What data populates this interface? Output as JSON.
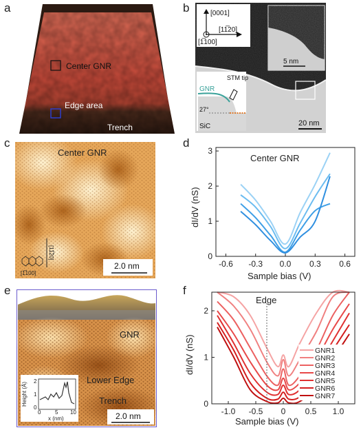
{
  "panel_labels": {
    "a": "a",
    "b": "b",
    "c": "c",
    "d": "d",
    "e": "e",
    "f": "f"
  },
  "panel_a": {
    "center_label": "Center GNR",
    "edge_label": "Edge area",
    "trench_label": "Trench",
    "colors": {
      "surface": "#c85040",
      "trench": "#3a2418",
      "center_box": "#111111",
      "edge_box": "#2c3fd6"
    }
  },
  "panel_b": {
    "axis_up": "[0001]",
    "axis_right": "[11̅20]",
    "axis_out": "[1̅100]",
    "inset_scale": "5 nm",
    "scale": "20 nm",
    "sketch_gnr": "GNR",
    "sketch_tip": "STM tip",
    "sketch_angle": "27°",
    "sketch_sic": "SiC"
  },
  "panel_c": {
    "title": "Center GNR",
    "axis_right": "[1̅100]",
    "axis_up": "[11̅20]",
    "scale": "2.0 nm"
  },
  "panel_d": {
    "annotation": "Center GNR",
    "ylabel": "dI/dV (nS)",
    "xlabel": "Sample bias (V)",
    "xticks": [
      "-0.6",
      "-0.3",
      "0.0",
      "0.3",
      "0.6"
    ],
    "yticks": [
      "0",
      "1",
      "2",
      "3"
    ]
  },
  "panel_e": {
    "gnr": "GNR",
    "lower_edge": "Lower Edge",
    "trench": "Trench",
    "scale": "2.0 nm",
    "inset_ylabel": "Height (Å)",
    "inset_xlabel": "x (nm)",
    "inset_xticks": [
      "0",
      "5",
      "10"
    ],
    "inset_yticks": [
      "0",
      "1",
      "2"
    ]
  },
  "panel_f": {
    "annotation": "Edge",
    "ylabel": "dI/dV (nS)",
    "xlabel": "Sample bias (V)",
    "xticks": [
      "-1.0",
      "-0.5",
      "0",
      "0.5",
      "1.0"
    ],
    "yticks": [
      "0",
      "1",
      "2"
    ],
    "legend": [
      "GNR1",
      "GNR2",
      "GNR3",
      "GNR4",
      "GNR5",
      "GNR6",
      "GNR7"
    ]
  },
  "chart_data": [
    {
      "type": "line",
      "annotation": "Center GNR",
      "xlabel": "Sample bias (V)",
      "ylabel": "dI/dV (nS)",
      "xlim": [
        -0.7,
        0.7
      ],
      "ylim": [
        0,
        3.1
      ],
      "x": [
        -0.45,
        -0.3,
        -0.15,
        0.0,
        0.15,
        0.3,
        0.45
      ],
      "series": [
        {
          "color": "#9bd2f5",
          "values": [
            2.05,
            1.6,
            1.0,
            0.35,
            1.25,
            2.05,
            2.95
          ]
        },
        {
          "color": "#6bbcf0",
          "values": [
            1.75,
            1.4,
            0.85,
            0.22,
            0.95,
            1.7,
            2.35
          ]
        },
        {
          "color": "#3e9fe6",
          "values": [
            1.5,
            1.1,
            0.6,
            0.12,
            0.75,
            1.3,
            1.5
          ]
        },
        {
          "color": "#2f8fe0",
          "values": [
            1.28,
            0.9,
            0.45,
            0.1,
            0.55,
            1.0,
            2.28
          ]
        }
      ]
    },
    {
      "type": "line",
      "annotation": "Edge",
      "xlabel": "Sample bias (V)",
      "ylabel": "dI/dV (nS)",
      "xlim": [
        -1.3,
        1.3
      ],
      "ylim": [
        0,
        2.4
      ],
      "x": [
        -1.2,
        -0.9,
        -0.6,
        -0.3,
        -0.1,
        0.0,
        0.1,
        0.3,
        0.6,
        0.9,
        1.2
      ],
      "series": [
        {
          "name": "GNR1",
          "color": "#f5a3a3",
          "values": [
            2.4,
            2.3,
            1.9,
            1.2,
            0.8,
            1.05,
            0.8,
            1.3,
            1.95,
            2.4,
            2.4
          ]
        },
        {
          "name": "GNR2",
          "color": "#f08080",
          "values": [
            2.4,
            2.1,
            1.6,
            0.9,
            0.6,
            0.95,
            0.6,
            0.95,
            1.55,
            2.3,
            2.4
          ]
        },
        {
          "name": "GNR3",
          "color": "#ec6060",
          "values": [
            2.2,
            1.8,
            1.2,
            0.6,
            0.4,
            0.75,
            0.4,
            0.6,
            1.15,
            1.9,
            2.4
          ]
        },
        {
          "name": "GNR4",
          "color": "#e84848",
          "values": [
            2.0,
            1.5,
            0.9,
            0.4,
            0.3,
            0.55,
            0.3,
            0.45,
            0.95,
            1.6,
            2.15
          ]
        },
        {
          "name": "GNR5",
          "color": "#e03030",
          "values": [
            1.9,
            1.3,
            0.65,
            0.25,
            0.2,
            0.4,
            0.2,
            0.3,
            0.75,
            1.35,
            1.95
          ]
        },
        {
          "name": "GNR6",
          "color": "#d41e1e",
          "values": [
            1.75,
            1.15,
            0.45,
            0.12,
            0.1,
            0.25,
            0.1,
            0.15,
            0.55,
            1.15,
            1.7
          ]
        },
        {
          "name": "GNR7",
          "color": "#c01010",
          "values": [
            1.65,
            1.0,
            0.3,
            0.05,
            0.02,
            0.12,
            0.02,
            0.05,
            0.35,
            0.95,
            1.5
          ]
        }
      ]
    }
  ]
}
